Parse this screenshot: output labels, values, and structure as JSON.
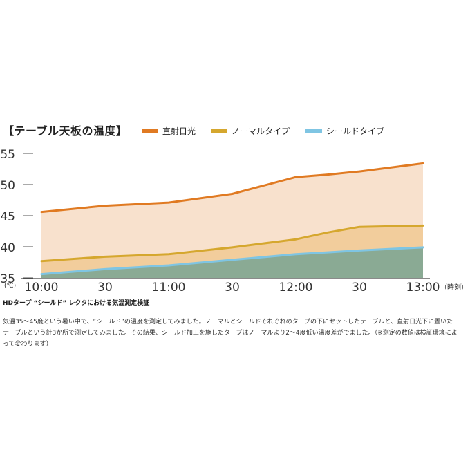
{
  "chart_data": {
    "type": "area",
    "title": "【テーブル天板の温度】",
    "subtitle": "HDタープ “シールド” レクタにおける気温測定検証",
    "description": "気温35～45度という暑い中で、“シールド”の温度を測定してみました。ノーマルとシールドそれぞれのタープの下にセットしたテーブルと、直射日光下に置いたテーブルという計3か所で測定してみました。その結果、シールド加工を施したタープはノーマルより2～4度低い温度差がでました。（※測定の数値は検証環境によって変わります）",
    "y_unit": "(℃)",
    "x_unit": "（時刻）",
    "ylim": [
      35,
      55
    ],
    "yticks": [
      35,
      40,
      45,
      50,
      55
    ],
    "xlim": [
      0,
      6
    ],
    "xtick_values": [
      0,
      1,
      2,
      3,
      4,
      5,
      6
    ],
    "xtick_labels": [
      "10:00",
      "30",
      "11:00",
      "30",
      "12:00",
      "30",
      "13:00"
    ],
    "grid": false,
    "legend_position": "top",
    "series": [
      {
        "name": "直射日光",
        "color": "#e07a22",
        "fill": "#f8e1cd",
        "x": [
          0,
          1,
          2,
          3,
          4,
          4.5,
          5,
          6
        ],
        "values": [
          45.6,
          46.6,
          47.1,
          48.5,
          51.2,
          51.6,
          52.1,
          53.4
        ]
      },
      {
        "name": "ノーマルタイプ",
        "color": "#d5a72e",
        "fill": "#f2cd9c",
        "x": [
          0,
          1,
          2,
          3,
          4,
          4.5,
          5,
          6
        ],
        "values": [
          37.7,
          38.4,
          38.8,
          39.9,
          41.2,
          42.3,
          43.2,
          43.4
        ]
      },
      {
        "name": "シールドタイプ",
        "color": "#7fc5e3",
        "fill": "#8aaa94",
        "x": [
          0,
          1,
          2,
          3,
          4,
          4.5,
          5,
          6
        ],
        "values": [
          35.6,
          36.4,
          37.0,
          37.9,
          38.8,
          39.1,
          39.4,
          39.9
        ]
      }
    ]
  }
}
